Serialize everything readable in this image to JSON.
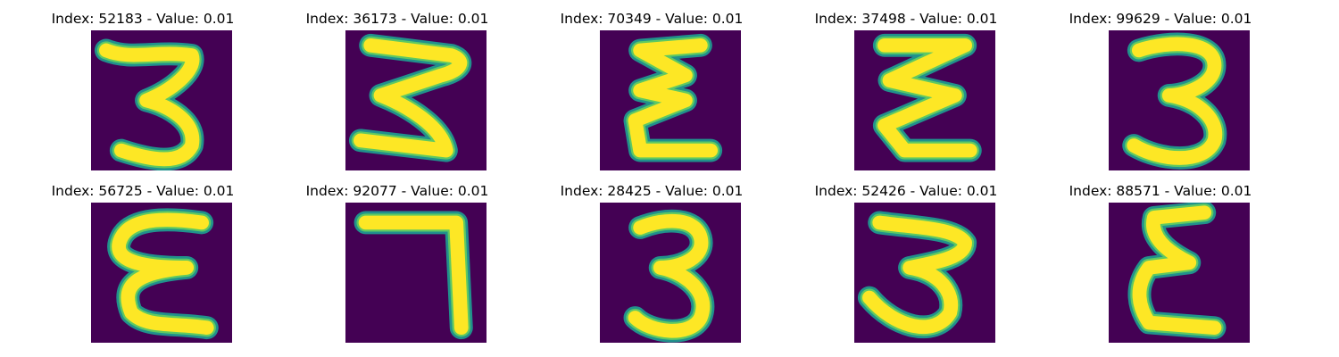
{
  "colors": {
    "background": "#440154",
    "outer_glow": "#21918c",
    "mid_glow": "#5ec962",
    "stroke": "#fde725"
  },
  "grid": [
    [
      {
        "title": "Index: 52183 - Value: 0.01",
        "glyph": "three-flat-top-icon"
      },
      {
        "title": "Index: 36173 - Value: 0.01",
        "glyph": "three-wide-zigzag-icon"
      },
      {
        "title": "Index: 70349 - Value: 0.01",
        "glyph": "epsilon-narrow-icon"
      },
      {
        "title": "Index: 37498 - Value: 0.01",
        "glyph": "epsilon-zigzag-icon"
      },
      {
        "title": "Index: 99629 - Value: 0.01",
        "glyph": "three-rounded-icon"
      }
    ],
    [
      {
        "title": "Index: 56725 - Value: 0.01",
        "glyph": "epsilon-wide-icon"
      },
      {
        "title": "Index: 92077 - Value: 0.01",
        "glyph": "seven-icon"
      },
      {
        "title": "Index: 28425 - Value: 0.01",
        "glyph": "three-classic-icon"
      },
      {
        "title": "Index: 52426 - Value: 0.01",
        "glyph": "three-bold-icon"
      },
      {
        "title": "Index: 88571 - Value: 0.01",
        "glyph": "epsilon-tall-icon"
      }
    ]
  ]
}
